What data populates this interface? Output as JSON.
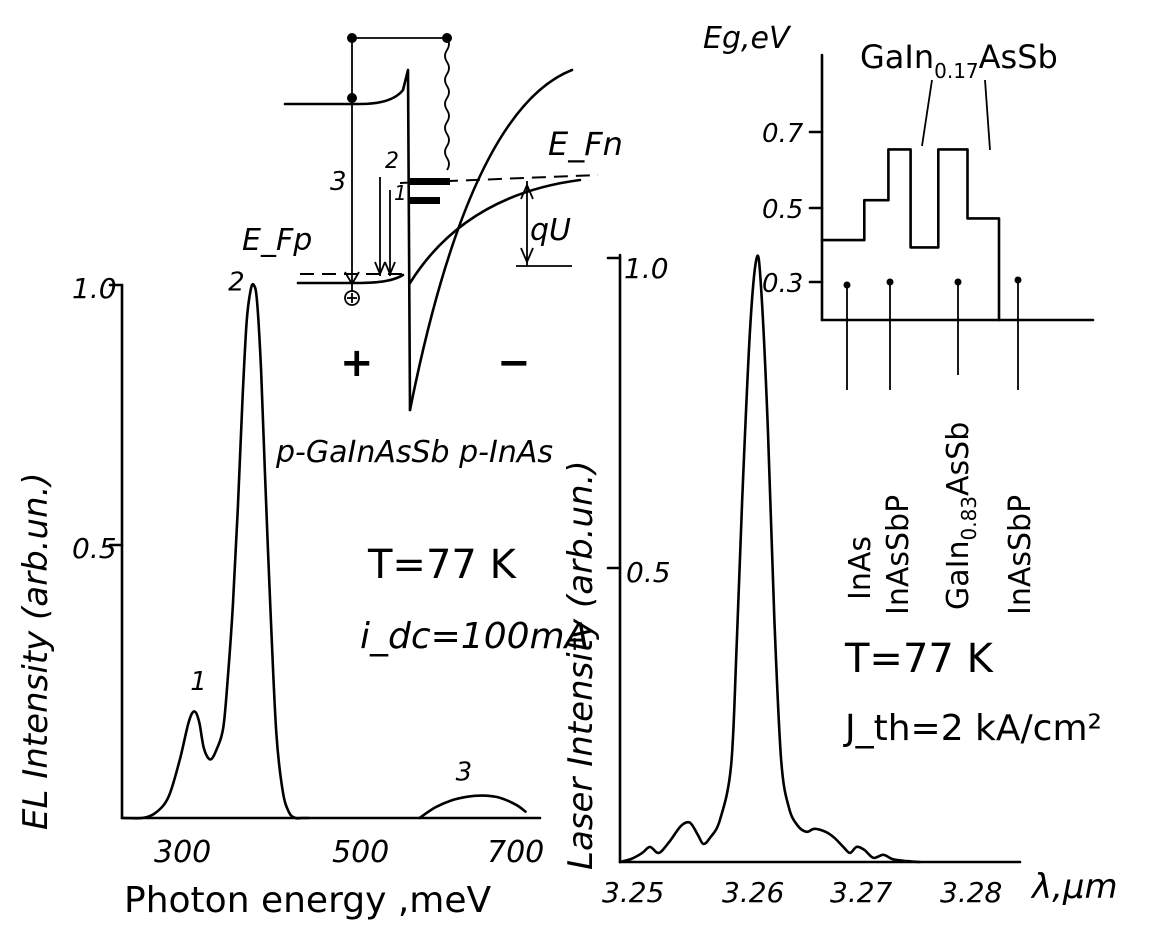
{
  "chart_data": [
    {
      "id": "el",
      "type": "line",
      "xlabel": "Photon energy ,meV",
      "ylabel": "EL Intensity (arb.un.)",
      "x_ticks": [
        "300",
        "500",
        "700"
      ],
      "y_ticks": [
        "0.5",
        "1.0"
      ],
      "xlim": [
        220,
        740
      ],
      "ylim": [
        0,
        1.0
      ],
      "series": [
        {
          "x": [
            222,
            245,
            262,
            278,
            292,
            303,
            310,
            316,
            322,
            330,
            338,
            346,
            352,
            358,
            364,
            370,
            375,
            380,
            384,
            388,
            393,
            398,
            405,
            412,
            420,
            428,
            436,
            444,
            452
          ],
          "y": [
            0.0,
            0.0,
            0.01,
            0.04,
            0.11,
            0.18,
            0.2,
            0.18,
            0.13,
            0.11,
            0.13,
            0.17,
            0.27,
            0.4,
            0.58,
            0.79,
            0.93,
            0.99,
            1.0,
            0.97,
            0.84,
            0.64,
            0.38,
            0.16,
            0.05,
            0.01,
            0.0,
            0.0,
            0.0
          ]
        },
        {
          "x": [
            590,
            610,
            630,
            650,
            670,
            690,
            710,
            722
          ],
          "y": [
            0.0,
            0.02,
            0.033,
            0.04,
            0.042,
            0.038,
            0.025,
            0.012
          ]
        }
      ],
      "labels": [
        {
          "text": "1",
          "x": 305,
          "y": 0.24
        },
        {
          "text": "2",
          "x": 352,
          "y": 0.99
        },
        {
          "text": "3",
          "x": 635,
          "y": 0.07
        }
      ]
    },
    {
      "id": "laser",
      "type": "line",
      "xlabel": "λ,μm",
      "ylabel": "Laser Intensity (arb.un.)",
      "x_ticks": [
        "3.25",
        "3.26",
        "3.27",
        "3.28"
      ],
      "y_ticks": [
        "0.5",
        "1.0"
      ],
      "xlim": [
        3.2475,
        3.2835
      ],
      "ylim": [
        0,
        1.0
      ],
      "series": [
        {
          "x": [
            3.2475,
            3.2485,
            3.2495,
            3.2502,
            3.251,
            3.252,
            3.253,
            3.2538,
            3.2545,
            3.255,
            3.2556,
            3.2565,
            3.2575,
            3.258,
            3.2585,
            3.2592,
            3.2598,
            3.2602,
            3.2608,
            3.2614,
            3.262,
            3.2627,
            3.2635,
            3.2643,
            3.265,
            3.266,
            3.2668,
            3.2676,
            3.2682,
            3.2688,
            3.2695,
            3.2703,
            3.2712,
            3.272,
            3.273,
            3.2745
          ],
          "y": [
            0.0,
            0.005,
            0.015,
            0.025,
            0.015,
            0.035,
            0.06,
            0.065,
            0.045,
            0.03,
            0.04,
            0.07,
            0.16,
            0.36,
            0.6,
            0.88,
            1.0,
            0.95,
            0.72,
            0.4,
            0.17,
            0.09,
            0.06,
            0.05,
            0.055,
            0.05,
            0.04,
            0.025,
            0.015,
            0.025,
            0.02,
            0.007,
            0.012,
            0.005,
            0.002,
            0.0
          ]
        }
      ]
    },
    {
      "id": "eg",
      "type": "step",
      "ylabel": "Eg,eV",
      "y_ticks": [
        "0.3",
        "0.5",
        "0.7"
      ],
      "ylim": [
        0.19,
        0.92
      ],
      "layers": [
        {
          "from": 0.0,
          "to": 0.156,
          "eg": 0.41
        },
        {
          "from": 0.156,
          "to": 0.245,
          "eg": 0.52
        },
        {
          "from": 0.245,
          "to": 0.327,
          "eg": 0.66
        },
        {
          "from": 0.327,
          "to": 0.429,
          "eg": 0.39
        },
        {
          "from": 0.429,
          "to": 0.537,
          "eg": 0.66
        },
        {
          "from": 0.537,
          "to": 0.653,
          "eg": 0.47
        }
      ],
      "top_label": "GaIn0.17AsSb",
      "layer_labels": [
        "InAs",
        "InAsSbP",
        "GaIn0.83AsSb",
        "InAsSbP"
      ]
    }
  ],
  "band_diagram": {
    "label_efp": "E_Fp",
    "label_efn": "E_Fn",
    "label_qu": "qU",
    "plus": "+",
    "minus": "−",
    "arrow_labels": [
      "1",
      "2",
      "3"
    ],
    "bottom_label": "p-GaInAsSb  p-InAs"
  },
  "annotations": {
    "el_temp": "T=77 K",
    "el_current": "i_dc=100mA",
    "laser_temp": "T=77 K",
    "laser_jth": "J_th=2 kA/cm²"
  }
}
